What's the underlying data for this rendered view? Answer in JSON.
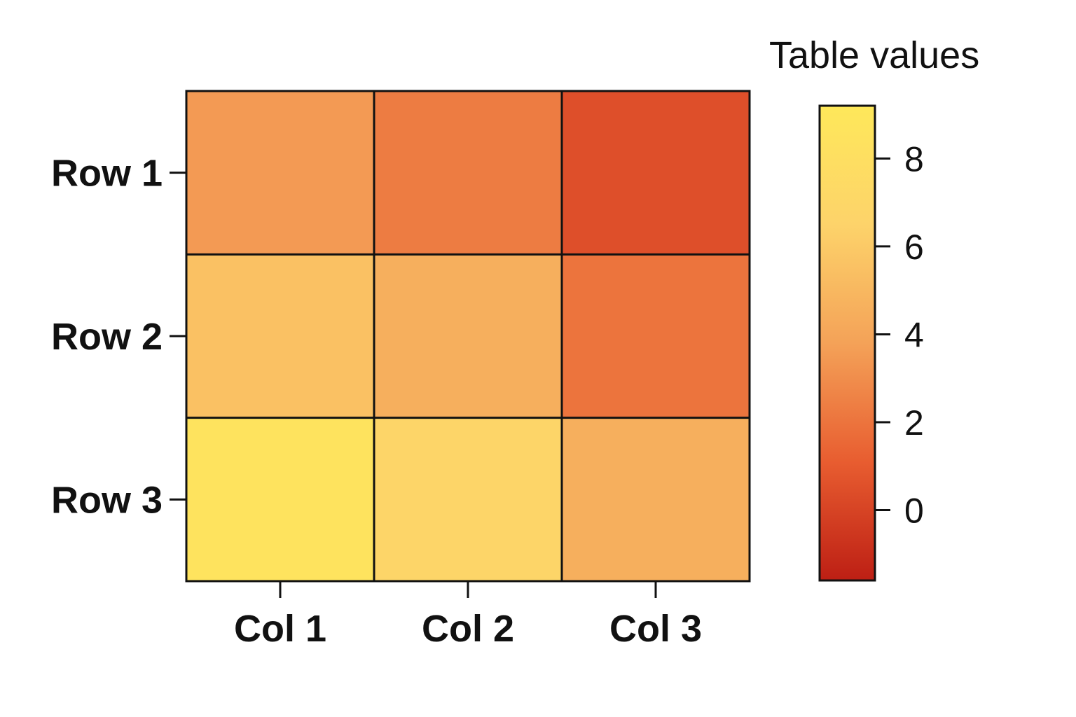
{
  "chart_data": {
    "type": "heatmap",
    "rows": [
      "Row 1",
      "Row 2",
      "Row 3"
    ],
    "columns": [
      "Col 1",
      "Col 2",
      "Col 3"
    ],
    "values": [
      [
        3.5,
        2.3,
        0.5
      ],
      [
        5.5,
        4.5,
        2.0
      ],
      [
        8.5,
        6.8,
        4.5
      ]
    ],
    "colorbar": {
      "title": "Table values",
      "range": [
        -1.6,
        9.2
      ],
      "ticks": [
        0,
        2,
        4,
        6,
        8
      ],
      "tick_labels": [
        "0",
        "2",
        "4",
        "6",
        "8"
      ],
      "colors": [
        "#bd1f14",
        "#e85d30",
        "#f4a258",
        "#fdd36a",
        "#fee85a"
      ]
    },
    "grid": true,
    "legend": "right"
  }
}
